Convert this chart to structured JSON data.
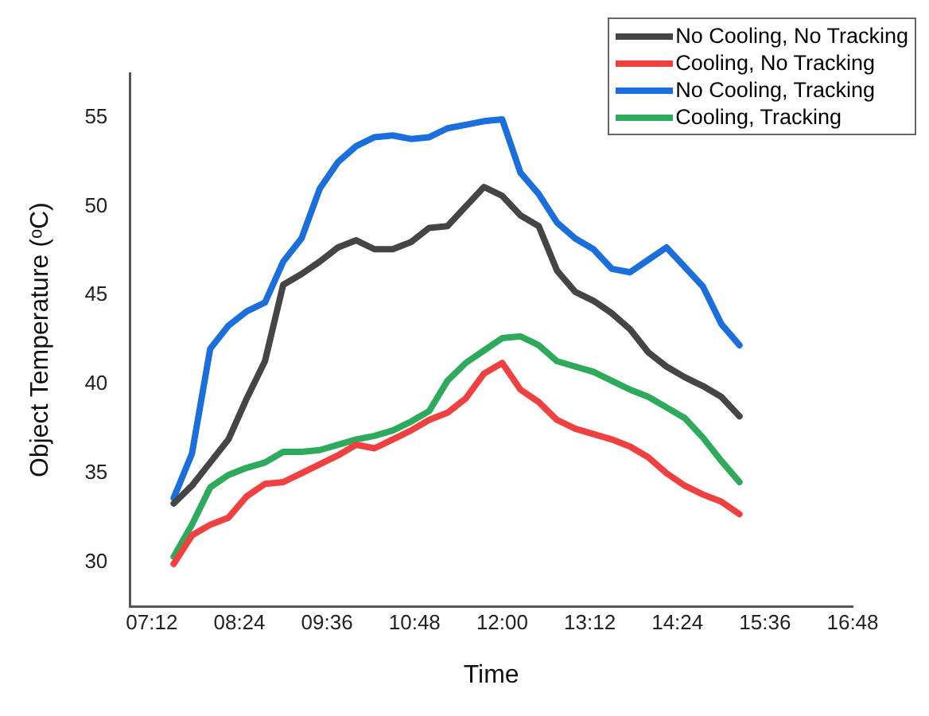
{
  "chart_data": {
    "type": "line",
    "xlabel": "Time",
    "ylabel": "Object Temperature (ᵒC)",
    "x": [
      7.5,
      7.75,
      8,
      8.25,
      8.5,
      8.75,
      9,
      9.25,
      9.5,
      9.75,
      10,
      10.25,
      10.5,
      10.75,
      11,
      11.25,
      11.5,
      11.75,
      12,
      12.25,
      12.5,
      12.75,
      13,
      13.25,
      13.5,
      13.75,
      14,
      14.25,
      14.5,
      14.75,
      15,
      15.25
    ],
    "series": [
      {
        "name": "No Cooling, No Tracking",
        "color": "#454545",
        "values": [
          33.3,
          34.3,
          35.6,
          36.9,
          39.2,
          41.3,
          45.6,
          46.2,
          46.9,
          47.7,
          48.1,
          47.6,
          47.6,
          48.0,
          48.8,
          48.9,
          50.0,
          51.1,
          50.6,
          49.5,
          48.9,
          46.4,
          45.2,
          44.7,
          44.0,
          43.1,
          41.8,
          41.0,
          40.4,
          39.9,
          39.3,
          38.2
        ]
      },
      {
        "name": "Cooling, No Tracking",
        "color": "#f04040",
        "values": [
          29.9,
          31.5,
          32.1,
          32.5,
          33.7,
          34.4,
          34.5,
          35.0,
          35.5,
          36.0,
          36.6,
          36.4,
          36.9,
          37.4,
          38.0,
          38.4,
          39.2,
          40.6,
          41.2,
          39.7,
          39.0,
          38.0,
          37.5,
          37.2,
          36.9,
          36.5,
          35.9,
          35.0,
          34.3,
          33.8,
          33.4,
          32.7
        ]
      },
      {
        "name": "No Cooling, Tracking",
        "color": "#1a6fdc",
        "values": [
          33.6,
          36.1,
          42.0,
          43.3,
          44.1,
          44.6,
          46.9,
          48.2,
          51.0,
          52.5,
          53.4,
          53.9,
          54.0,
          53.8,
          53.9,
          54.4,
          54.6,
          54.8,
          54.9,
          51.9,
          50.7,
          49.1,
          48.2,
          47.6,
          46.5,
          46.3,
          47.0,
          47.7,
          46.6,
          45.5,
          43.4,
          42.2
        ]
      },
      {
        "name": "Cooling, Tracking",
        "color": "#2eaa5c",
        "values": [
          30.3,
          32.1,
          34.2,
          34.9,
          35.3,
          35.6,
          36.2,
          36.2,
          36.3,
          36.6,
          36.9,
          37.1,
          37.4,
          37.9,
          38.5,
          40.2,
          41.2,
          41.9,
          42.6,
          42.7,
          42.2,
          41.3,
          41.0,
          40.7,
          40.2,
          39.7,
          39.3,
          38.7,
          38.1,
          37.0,
          35.7,
          34.5
        ]
      }
    ],
    "xlim": [
      6.9,
      16.8
    ],
    "xticks": [
      {
        "value": 7.2,
        "label": "07:12"
      },
      {
        "value": 8.4,
        "label": "08:24"
      },
      {
        "value": 9.6,
        "label": "09:36"
      },
      {
        "value": 10.8,
        "label": "10:48"
      },
      {
        "value": 12,
        "label": "12:00"
      },
      {
        "value": 13.2,
        "label": "13:12"
      },
      {
        "value": 14.4,
        "label": "14:24"
      },
      {
        "value": 15.6,
        "label": "15:36"
      },
      {
        "value": 16.8,
        "label": "16:48"
      }
    ],
    "ylim": [
      27.5,
      57.5
    ],
    "yticks": [
      30,
      35,
      40,
      45,
      50,
      55
    ],
    "grid": false,
    "legend": "top right",
    "marker": "none",
    "line_style": "solid"
  }
}
